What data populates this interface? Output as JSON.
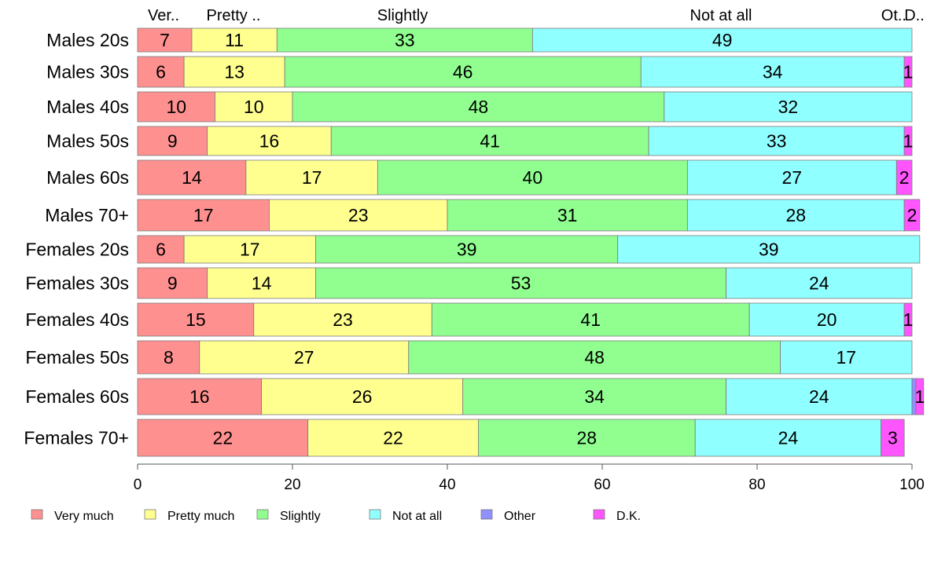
{
  "chart_data": {
    "type": "bar",
    "orientation": "horizontal",
    "stacked": true,
    "title": "",
    "xlabel": "",
    "ylabel": "",
    "xlim": [
      0,
      100
    ],
    "x_ticks": [
      0,
      20,
      40,
      60,
      80,
      100
    ],
    "grid": false,
    "legend_position": "bottom",
    "categories": [
      "Males 20s",
      "Males 30s",
      "Males 40s",
      "Males 50s",
      "Males 60s",
      "Males 70+",
      "Females 20s",
      "Females 30s",
      "Females 40s",
      "Females 50s",
      "Females 60s",
      "Females 70+"
    ],
    "top_labels": [
      "Ver..",
      "Pretty ..",
      "Slightly",
      "Not at all",
      "Ot..",
      "D.."
    ],
    "series": [
      {
        "name": "Very much",
        "color": "#ff9090",
        "values": [
          7,
          6,
          10,
          9,
          14,
          17,
          6,
          9,
          15,
          8,
          16,
          22
        ]
      },
      {
        "name": "Pretty much",
        "color": "#ffff90",
        "values": [
          11,
          13,
          10,
          16,
          17,
          23,
          17,
          14,
          23,
          27,
          26,
          22
        ]
      },
      {
        "name": "Slightly",
        "color": "#90ff90",
        "values": [
          33,
          46,
          48,
          41,
          40,
          31,
          39,
          53,
          41,
          48,
          34,
          28
        ]
      },
      {
        "name": "Not at all",
        "color": "#90ffff",
        "values": [
          49,
          34,
          32,
          33,
          27,
          28,
          39,
          24,
          20,
          17,
          24,
          24
        ]
      },
      {
        "name": "Other",
        "color": "#9090ff",
        "values": [
          0,
          0,
          0,
          0,
          0,
          0,
          0,
          0,
          0,
          0,
          0.5,
          0
        ]
      },
      {
        "name": "D.K.",
        "color": "#ff55ff",
        "values": [
          0,
          1,
          0,
          1,
          2,
          2,
          0,
          0,
          1,
          0,
          1,
          3
        ]
      }
    ],
    "data_labels": [
      [
        "7",
        "11",
        "33",
        "49",
        "",
        ""
      ],
      [
        "6",
        "13",
        "46",
        "34",
        "",
        "1"
      ],
      [
        "10",
        "10",
        "48",
        "32",
        "",
        ""
      ],
      [
        "9",
        "16",
        "41",
        "33",
        "",
        "1"
      ],
      [
        "14",
        "17",
        "40",
        "27",
        "",
        "2"
      ],
      [
        "17",
        "23",
        "31",
        "28",
        "",
        "2"
      ],
      [
        "6",
        "17",
        "39",
        "39",
        "",
        ""
      ],
      [
        "9",
        "14",
        "53",
        "24",
        "",
        ""
      ],
      [
        "15",
        "23",
        "41",
        "20",
        "",
        "1"
      ],
      [
        "8",
        "27",
        "48",
        "17",
        "",
        ""
      ],
      [
        "16",
        "26",
        "34",
        "24",
        "",
        "1"
      ],
      [
        "22",
        "22",
        "28",
        "24",
        "",
        "3"
      ]
    ]
  }
}
